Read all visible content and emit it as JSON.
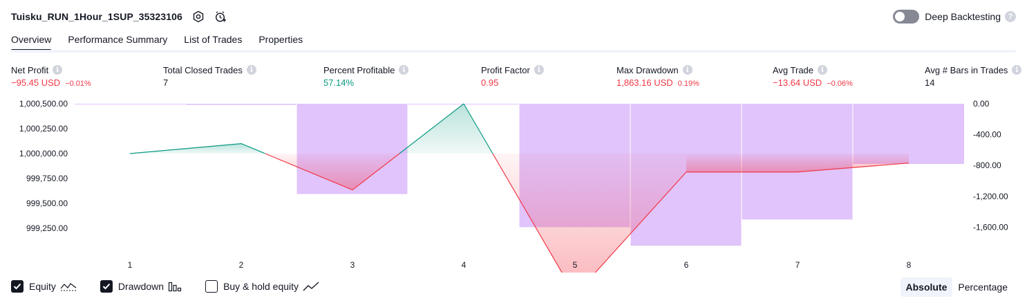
{
  "header": {
    "strategy_title": "Tuisku_RUN_1Hour_1SUP_35323106",
    "deep_backtesting_label": "Deep Backtesting",
    "deep_backtesting_enabled": false,
    "help_glyph": "?"
  },
  "tabs": [
    {
      "label": "Overview",
      "active": true
    },
    {
      "label": "Performance Summary",
      "active": false
    },
    {
      "label": "List of Trades",
      "active": false
    },
    {
      "label": "Properties",
      "active": false
    }
  ],
  "metrics": {
    "info_glyph": "i",
    "net_profit": {
      "label": "Net Profit",
      "value": "−95.45 USD",
      "pct": "−0.01%"
    },
    "total_closed_trades": {
      "label": "Total Closed Trades",
      "value": "7"
    },
    "percent_profitable": {
      "label": "Percent Profitable",
      "value": "57.14%"
    },
    "profit_factor": {
      "label": "Profit Factor",
      "value": "0.95"
    },
    "max_drawdown": {
      "label": "Max Drawdown",
      "value": "1,863.16 USD",
      "pct": "0.19%"
    },
    "avg_trade": {
      "label": "Avg Trade",
      "value": "−13.64 USD",
      "pct": "−0.06%"
    },
    "avg_bars": {
      "label": "Avg # Bars in Trades",
      "value": "14"
    }
  },
  "colors": {
    "profit": "#089981",
    "loss": "#f23645",
    "drawdown_bar": "#e1c4fb",
    "text": "#131722"
  },
  "chart_data": {
    "type": "line",
    "x": [
      1,
      2,
      3,
      4,
      5,
      6,
      7,
      8
    ],
    "x_tick_labels": [
      "1",
      "2",
      "3",
      "4",
      "5",
      "6",
      "7",
      "8"
    ],
    "equity": {
      "name": "Equity",
      "values": [
        1000000.0,
        1000100.0,
        999635.0,
        1000500.0,
        998580.0,
        999815.0,
        999815.0,
        999905.0
      ]
    },
    "drawdown": {
      "name": "Drawdown",
      "values": [
        0,
        -15,
        -1170,
        0,
        -1600,
        -1840,
        -1500,
        -780
      ]
    },
    "left_axis": {
      "ylim": [
        999000,
        1000500
      ],
      "tick_values": [
        1000500,
        1000250,
        1000000,
        999750,
        999500,
        999250
      ],
      "tick_labels": [
        "1,000,500.00",
        "1,000,250.00",
        "1,000,000.00",
        "999,750.00",
        "999,500.00",
        "999,250.00"
      ]
    },
    "right_axis": {
      "ylim": [
        -2000,
        0
      ],
      "tick_values": [
        0,
        -400,
        -800,
        -1200,
        -1600
      ],
      "tick_labels": [
        "0.00",
        "-400.00",
        "-800.00",
        "-1,200.00",
        "-1,600.00"
      ]
    },
    "grid": false,
    "legend_position": "bottom-left"
  },
  "legend": {
    "equity_label": "Equity",
    "drawdown_label": "Drawdown",
    "buy_hold_label": "Buy & hold equity",
    "equity_checked": true,
    "drawdown_checked": true,
    "buy_hold_checked": false
  },
  "mode": {
    "absolute_label": "Absolute",
    "percentage_label": "Percentage",
    "active": "Absolute"
  }
}
